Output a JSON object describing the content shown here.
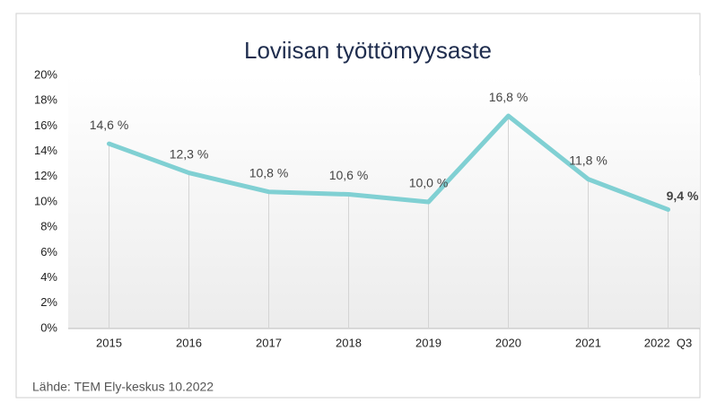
{
  "chart_data": {
    "type": "line",
    "title": "Loviisan työttömyysaste",
    "categories": [
      "2015",
      "2016",
      "2017",
      "2018",
      "2019",
      "2020",
      "2021",
      "2022  Q3"
    ],
    "series": [
      {
        "name": "Työttömyysaste",
        "color": "#80d0d3",
        "values": [
          14.6,
          12.3,
          10.8,
          10.6,
          10.0,
          16.8,
          11.8,
          9.4
        ],
        "value_labels": [
          "14,6 %",
          "12,3 %",
          "10,8 %",
          "10,6 %",
          "10,0 %",
          "16,8 %",
          "11,8 %",
          "9,4 %"
        ]
      }
    ],
    "ylim": [
      0,
      20
    ],
    "yticks": [
      {
        "value": 0,
        "label": "0%"
      },
      {
        "value": 2,
        "label": "2%"
      },
      {
        "value": 4,
        "label": "4%"
      },
      {
        "value": 6,
        "label": "6%"
      },
      {
        "value": 8,
        "label": "8%"
      },
      {
        "value": 10,
        "label": "10%"
      },
      {
        "value": 12,
        "label": "12%"
      },
      {
        "value": 14,
        "label": "14%"
      },
      {
        "value": 16,
        "label": "16%"
      },
      {
        "value": 18,
        "label": "18%"
      },
      {
        "value": 20,
        "label": "20%"
      }
    ],
    "source": "Lähde: TEM Ely-keskus 10.2022"
  }
}
